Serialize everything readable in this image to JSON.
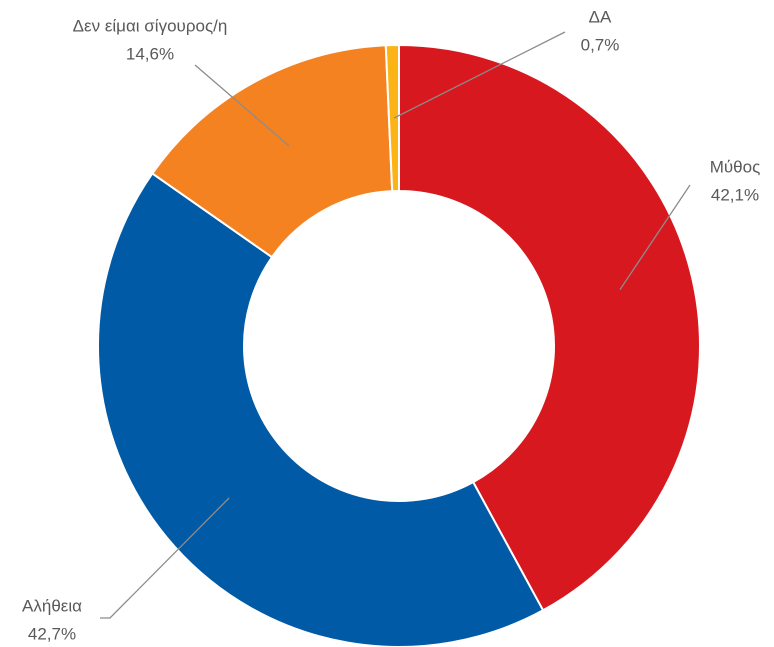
{
  "chart_data": {
    "type": "donut",
    "categories": [
      "Μύθος",
      "Αλήθεια",
      "Δεν είμαι σίγουρος/η",
      "ΔΑ"
    ],
    "values": [
      42.1,
      42.7,
      14.6,
      0.7
    ],
    "value_labels": [
      "42,1%",
      "42,7%",
      "14,6%",
      "0,7%"
    ],
    "colors": [
      "#d7191f",
      "#005aa6",
      "#f58220",
      "#fcb316"
    ]
  }
}
